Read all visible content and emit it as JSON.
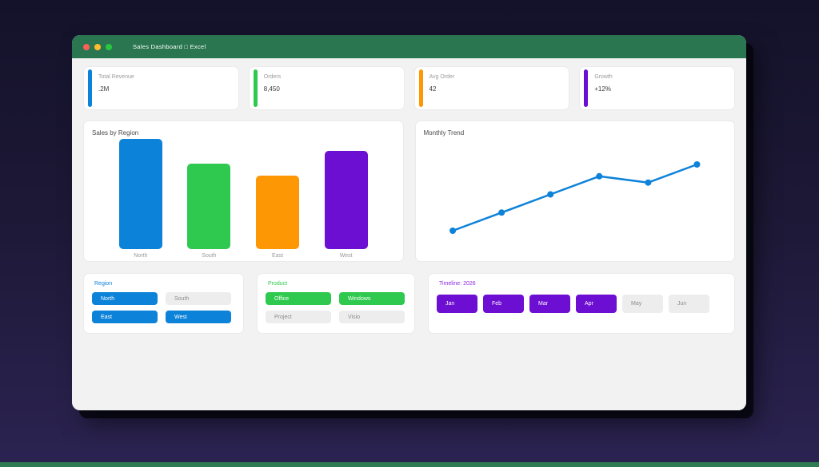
{
  "window": {
    "title": "Sales Dashboard □ Excel",
    "titlebar_color": "#2a7650",
    "controls": {
      "close_color": "#ff5f57",
      "minimize_color": "#febc2e",
      "maximize_color": "#28c840"
    }
  },
  "kpis": [
    {
      "label": "Total Revenue",
      "value": ".2M",
      "accent": "#0d82d9"
    },
    {
      "label": "Orders",
      "value": "8,450",
      "accent": "#2ec94e"
    },
    {
      "label": "Avg Order",
      "value": "42",
      "accent": "#fd9704"
    },
    {
      "label": "Growth",
      "value": "+12%",
      "accent": "#6d0ed3"
    }
  ],
  "chart_data": [
    {
      "type": "bar",
      "title": "Sales by Region",
      "categories": [
        "North",
        "South",
        "East",
        "West"
      ],
      "values": [
        450,
        350,
        300,
        400
      ],
      "colors": [
        "#0d82d9",
        "#2ec94e",
        "#fd9704",
        "#6d0ed3"
      ],
      "ylim": [
        0,
        450
      ],
      "grid": false,
      "legend": false,
      "axis_tick_labels_shown": false
    },
    {
      "type": "line",
      "title": "Monthly Trend",
      "x": [
        1,
        2,
        3,
        4,
        5,
        6
      ],
      "values": [
        100,
        120,
        140,
        160,
        153,
        173
      ],
      "color": "#0d82d9",
      "markers": true,
      "grid": false,
      "legend": false,
      "axis_tick_labels_shown": false
    }
  ],
  "slicers": [
    {
      "title": "Region",
      "title_color": "#0d82d9",
      "accent": "#0d82d9",
      "options": [
        {
          "label": "North",
          "selected": true
        },
        {
          "label": "South",
          "selected": false
        },
        {
          "label": "East",
          "selected": true
        },
        {
          "label": "West",
          "selected": true
        }
      ]
    },
    {
      "title": "Product",
      "title_color": "#2ec94e",
      "accent": "#2ec94e",
      "options": [
        {
          "label": "Office",
          "selected": true
        },
        {
          "label": "Windows",
          "selected": true
        },
        {
          "label": "Project",
          "selected": false
        },
        {
          "label": "Visio",
          "selected": false
        }
      ]
    },
    {
      "title": "Timeline: 2026",
      "title_color": "#8a2be2",
      "accent": "#6d0ed3",
      "options": [
        {
          "label": "Jan",
          "selected": true
        },
        {
          "label": "Feb",
          "selected": true
        },
        {
          "label": "Mar",
          "selected": true
        },
        {
          "label": "Apr",
          "selected": true
        },
        {
          "label": "May",
          "selected": false
        },
        {
          "label": "Jun",
          "selected": false
        }
      ]
    }
  ],
  "page": {
    "footer_bar_color": "#2e7d52"
  }
}
